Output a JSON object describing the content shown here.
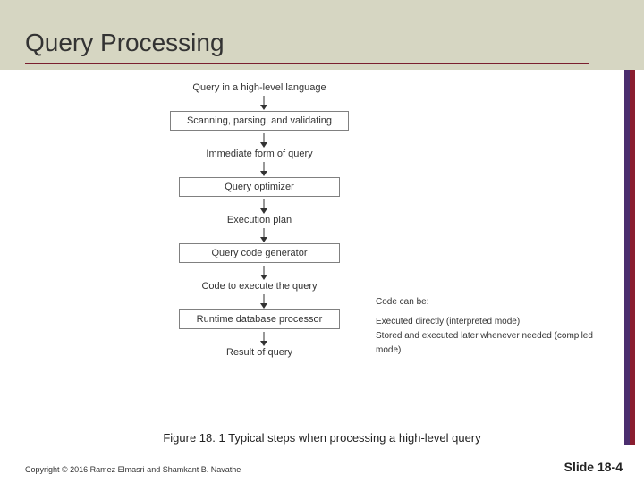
{
  "slide": {
    "title": "Query Processing",
    "caption": "Figure 18. 1 Typical steps when processing a high-level query",
    "copyright": "Copyright © 2016 Ramez Elmasri and Shamkant B. Navathe",
    "slide_number": "Slide 18-4"
  },
  "flowchart": {
    "type": "flowchart",
    "node_border_color": "#808080",
    "node_bg_color": "#ffffff",
    "text_color": "#333333",
    "label_fontsize": 11,
    "box_fontsize": 11,
    "arrow_color": "#333333",
    "box_min_width": 180,
    "items": [
      {
        "kind": "label",
        "text": "Query in a high-level language"
      },
      {
        "kind": "arrow"
      },
      {
        "kind": "box",
        "text": "Scanning, parsing, and validating"
      },
      {
        "kind": "arrow"
      },
      {
        "kind": "label",
        "text": "Immediate form of query"
      },
      {
        "kind": "arrow"
      },
      {
        "kind": "box",
        "text": "Query optimizer"
      },
      {
        "kind": "arrow"
      },
      {
        "kind": "label",
        "text": "Execution plan"
      },
      {
        "kind": "arrow"
      },
      {
        "kind": "box",
        "text": "Query code generator"
      },
      {
        "kind": "arrow"
      },
      {
        "kind": "label",
        "text": "Code to execute the query"
      },
      {
        "kind": "arrow"
      },
      {
        "kind": "box",
        "text": "Runtime database processor"
      },
      {
        "kind": "arrow"
      },
      {
        "kind": "label",
        "text": "Result of query"
      }
    ]
  },
  "sidenote": {
    "heading": "Code can be:",
    "lines": [
      "Executed directly (interpreted mode)",
      "Stored and executed later whenever needed (compiled mode)"
    ],
    "fontsize": 10,
    "text_color": "#333333"
  },
  "style": {
    "header_bg": "#d6d6c2",
    "underline_color": "#7a1e2e",
    "stripe_purple": "#4b2e6f",
    "stripe_red": "#8a1d2f"
  }
}
